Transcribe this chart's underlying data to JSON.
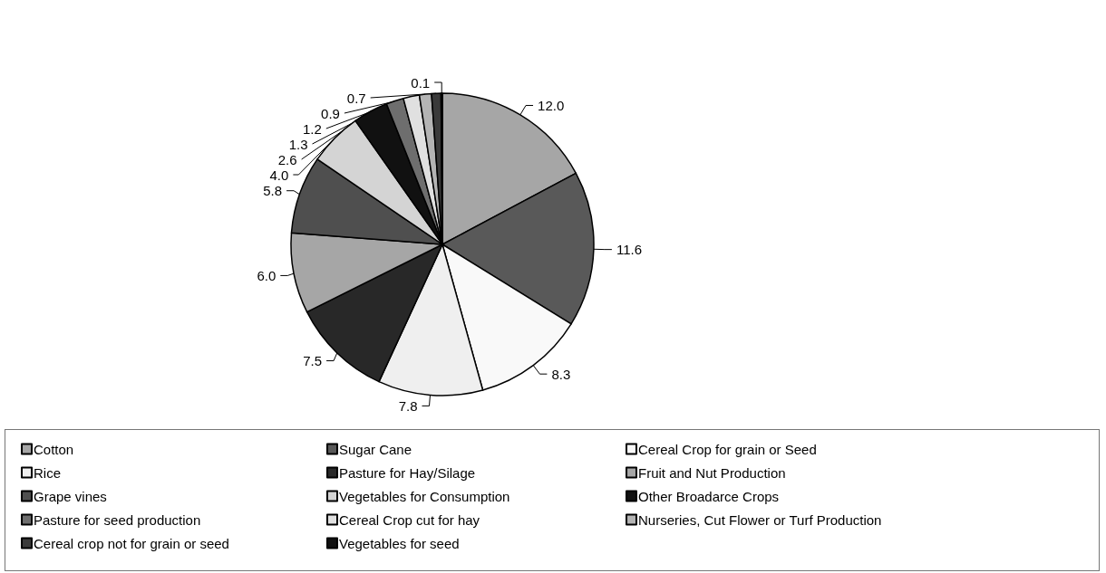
{
  "chart_data": {
    "type": "pie",
    "categories": [
      "Cotton",
      "Sugar Cane",
      "Cereal Crop for grain or Seed",
      "Rice",
      "Pasture for Hay/Silage",
      "Fruit and Nut Production",
      "Grape vines",
      "Vegetables for Consumption",
      "Other Broadarce Crops",
      "Pasture for seed production",
      "Cereal Crop cut for hay",
      "Nurseries, Cut Flower or Turf Production",
      "Cereal crop not for grain or seed",
      "Vegetables for seed"
    ],
    "values": [
      12.0,
      11.6,
      8.3,
      7.8,
      7.5,
      6.0,
      5.8,
      4.0,
      2.6,
      1.3,
      1.2,
      0.9,
      0.7,
      0.1
    ],
    "value_labels": [
      "12.0",
      "11.6",
      "8.3",
      "7.8",
      "7.5",
      "6.0",
      "5.8",
      "4.0",
      "2.6",
      "1.3",
      "1.2",
      "0.9",
      "0.7",
      "0.1"
    ],
    "colors": [
      "#a6a6a6",
      "#595959",
      "#f9f9f9",
      "#efefef",
      "#282828",
      "#a6a6a6",
      "#4f4f4f",
      "#d4d4d4",
      "#111111",
      "#6e6e6e",
      "#e0e0e0",
      "#b4b4b4",
      "#3a3a3a",
      "#111111"
    ],
    "legend": "bottom"
  }
}
